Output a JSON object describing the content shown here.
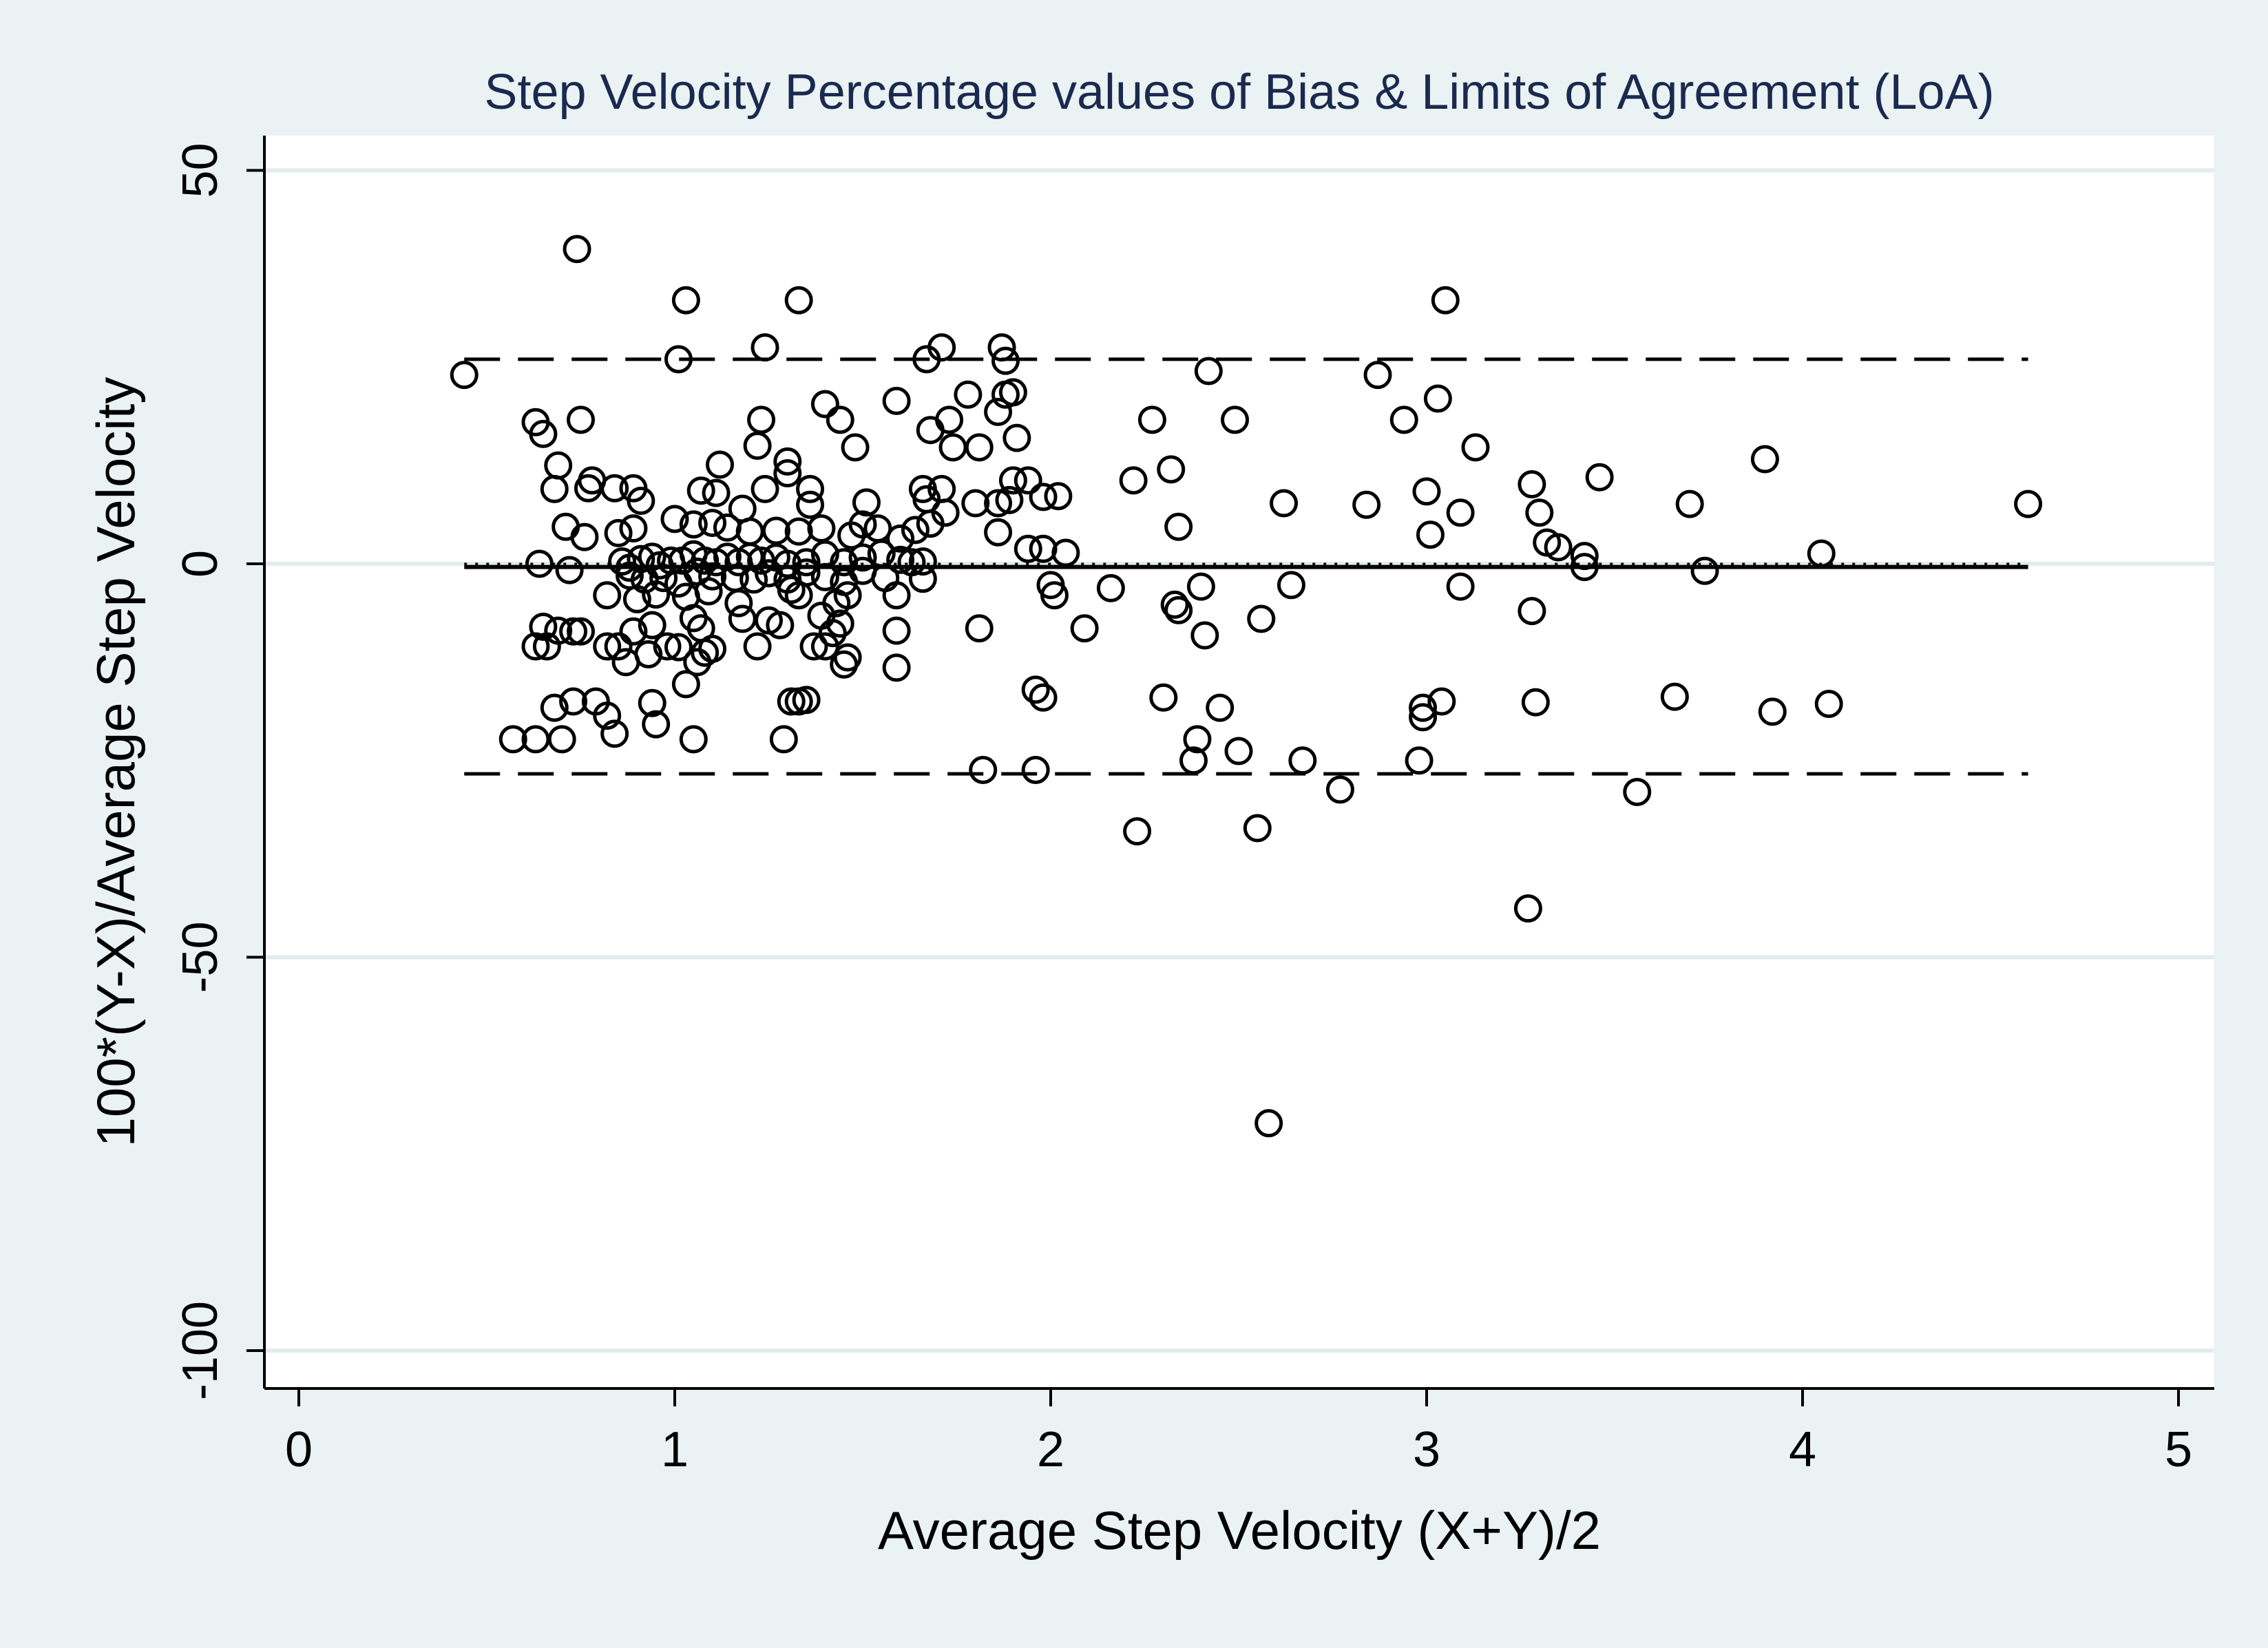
{
  "chart_data": {
    "type": "scatter",
    "title": "Step Velocity Percentage values of Bias & Limits of Agreement (LoA)",
    "xlabel": "Average Step Velocity (X+Y)/2",
    "ylabel": "100*(Y-X)/Average Step Velocity",
    "xlim": [
      0,
      5
    ],
    "ylim": [
      -100,
      50
    ],
    "xticks": [
      0,
      1,
      2,
      3,
      4,
      5
    ],
    "yticks": [
      50,
      0,
      -50,
      -100
    ],
    "xtick_labels": [
      "0",
      "1",
      "2",
      "3",
      "4",
      "5"
    ],
    "ytick_labels": [
      "50",
      "0",
      "-50",
      "-100"
    ],
    "grid": "horizontal",
    "reference_lines": [
      {
        "name": "bias",
        "value": -0.4,
        "style": "solid",
        "x_range": [
          0.44,
          4.6
        ]
      },
      {
        "name": "upper-loa",
        "value": 26.0,
        "style": "dashed",
        "x_range": [
          0.44,
          4.6
        ]
      },
      {
        "name": "lower-loa",
        "value": -26.7,
        "style": "dashed",
        "x_range": [
          0.44,
          4.6
        ]
      },
      {
        "name": "zero",
        "value": 0,
        "style": "dotted",
        "x_range": [
          0.44,
          4.6
        ]
      }
    ],
    "points": [
      [
        0.44,
        24.0
      ],
      [
        0.74,
        40.0
      ],
      [
        1.03,
        33.5
      ],
      [
        1.33,
        33.5
      ],
      [
        1.01,
        26.0
      ],
      [
        1.24,
        27.5
      ],
      [
        1.67,
        26.0
      ],
      [
        1.71,
        27.5
      ],
      [
        1.87,
        27.5
      ],
      [
        1.88,
        25.8
      ],
      [
        2.42,
        24.5
      ],
      [
        2.87,
        24.0
      ],
      [
        3.05,
        33.5
      ],
      [
        3.03,
        21.0
      ],
      [
        2.94,
        18.3
      ],
      [
        2.27,
        18.3
      ],
      [
        2.49,
        18.3
      ],
      [
        3.13,
        14.8
      ],
      [
        3.9,
        13.3
      ],
      [
        0.63,
        18.0
      ],
      [
        0.65,
        16.5
      ],
      [
        0.75,
        18.3
      ],
      [
        1.23,
        18.3
      ],
      [
        1.22,
        15.0
      ],
      [
        1.4,
        20.3
      ],
      [
        1.44,
        18.3
      ],
      [
        1.48,
        14.8
      ],
      [
        1.59,
        20.7
      ],
      [
        1.68,
        17.0
      ],
      [
        1.73,
        18.3
      ],
      [
        1.78,
        21.5
      ],
      [
        1.81,
        14.8
      ],
      [
        1.88,
        21.5
      ],
      [
        1.86,
        19.3
      ],
      [
        1.9,
        21.8
      ],
      [
        1.91,
        16.0
      ],
      [
        1.74,
        14.8
      ],
      [
        0.69,
        12.5
      ],
      [
        0.68,
        9.5
      ],
      [
        0.78,
        10.6
      ],
      [
        0.77,
        9.6
      ],
      [
        0.84,
        9.6
      ],
      [
        0.89,
        9.6
      ],
      [
        0.91,
        8.0
      ],
      [
        1.07,
        9.3
      ],
      [
        1.12,
        12.6
      ],
      [
        1.11,
        9.0
      ],
      [
        1.3,
        13.0
      ],
      [
        1.3,
        11.5
      ],
      [
        1.36,
        9.5
      ],
      [
        1.24,
        9.5
      ],
      [
        1.66,
        9.5
      ],
      [
        1.71,
        9.5
      ],
      [
        1.67,
        8.2
      ],
      [
        1.8,
        7.7
      ],
      [
        1.86,
        7.7
      ],
      [
        1.89,
        8.1
      ],
      [
        1.9,
        10.6
      ],
      [
        1.94,
        10.6
      ],
      [
        1.98,
        8.5
      ],
      [
        2.02,
        8.6
      ],
      [
        2.22,
        10.6
      ],
      [
        2.32,
        12.0
      ],
      [
        2.62,
        7.7
      ],
      [
        2.84,
        7.5
      ],
      [
        3.0,
        9.2
      ],
      [
        3.28,
        10.1
      ],
      [
        3.46,
        11.0
      ],
      [
        3.7,
        7.6
      ],
      [
        4.6,
        7.6
      ],
      [
        1.51,
        7.8
      ],
      [
        1.36,
        7.5
      ],
      [
        1.18,
        7.0
      ],
      [
        0.71,
        4.7
      ],
      [
        0.76,
        3.4
      ],
      [
        0.85,
        3.9
      ],
      [
        0.89,
        4.5
      ],
      [
        1.0,
        5.7
      ],
      [
        1.05,
        5.0
      ],
      [
        1.1,
        5.2
      ],
      [
        1.14,
        4.6
      ],
      [
        1.2,
        4.1
      ],
      [
        1.27,
        4.2
      ],
      [
        1.33,
        4.1
      ],
      [
        1.39,
        4.5
      ],
      [
        1.47,
        3.6
      ],
      [
        1.5,
        5.0
      ],
      [
        1.54,
        4.5
      ],
      [
        1.6,
        3.2
      ],
      [
        1.64,
        4.3
      ],
      [
        1.68,
        5.1
      ],
      [
        1.72,
        6.5
      ],
      [
        1.86,
        4.0
      ],
      [
        2.34,
        4.7
      ],
      [
        3.01,
        3.7
      ],
      [
        3.09,
        6.5
      ],
      [
        3.3,
        6.5
      ],
      [
        3.32,
        2.7
      ],
      [
        3.35,
        2.1
      ],
      [
        3.42,
        1.0
      ],
      [
        4.05,
        1.3
      ],
      [
        2.04,
        1.4
      ],
      [
        1.94,
        1.9
      ],
      [
        1.98,
        1.9
      ],
      [
        0.64,
        0.0
      ],
      [
        0.72,
        -0.8
      ],
      [
        0.86,
        0.3
      ],
      [
        0.88,
        -0.5
      ],
      [
        0.91,
        0.6
      ],
      [
        0.94,
        0.9
      ],
      [
        0.96,
        -0.2
      ],
      [
        0.99,
        0.4
      ],
      [
        1.02,
        0.4
      ],
      [
        1.05,
        1.2
      ],
      [
        1.08,
        0.4
      ],
      [
        1.11,
        0.2
      ],
      [
        1.14,
        0.9
      ],
      [
        1.17,
        0.2
      ],
      [
        1.2,
        0.9
      ],
      [
        1.23,
        0.4
      ],
      [
        1.27,
        0.8
      ],
      [
        1.3,
        0.0
      ],
      [
        1.35,
        0.2
      ],
      [
        1.4,
        1.2
      ],
      [
        1.45,
        0.2
      ],
      [
        1.5,
        0.8
      ],
      [
        1.55,
        1.3
      ],
      [
        1.6,
        0.5
      ],
      [
        1.63,
        0.2
      ],
      [
        1.66,
        0.3
      ],
      [
        3.42,
        -0.4
      ],
      [
        3.74,
        -0.9
      ],
      [
        0.88,
        -1.5
      ],
      [
        0.92,
        -2.0
      ],
      [
        0.97,
        -1.8
      ],
      [
        1.01,
        -2.5
      ],
      [
        1.06,
        -1.0
      ],
      [
        1.1,
        -1.6
      ],
      [
        1.16,
        -1.8
      ],
      [
        1.21,
        -2.0
      ],
      [
        1.25,
        -1.2
      ],
      [
        1.3,
        -2.0
      ],
      [
        1.35,
        -1.1
      ],
      [
        1.4,
        -1.7
      ],
      [
        1.45,
        -2.3
      ],
      [
        1.5,
        -0.9
      ],
      [
        1.56,
        -1.8
      ],
      [
        1.66,
        -1.9
      ],
      [
        2.0,
        -2.7
      ],
      [
        2.16,
        -3.1
      ],
      [
        2.4,
        -2.9
      ],
      [
        2.64,
        -2.7
      ],
      [
        3.09,
        -2.9
      ],
      [
        0.82,
        -4.0
      ],
      [
        0.9,
        -4.5
      ],
      [
        0.95,
        -3.9
      ],
      [
        1.03,
        -4.2
      ],
      [
        1.09,
        -3.5
      ],
      [
        1.17,
        -5.0
      ],
      [
        1.31,
        -3.3
      ],
      [
        1.33,
        -4.0
      ],
      [
        1.43,
        -5.0
      ],
      [
        1.46,
        -4.0
      ],
      [
        1.59,
        -4.0
      ],
      [
        2.01,
        -4.0
      ],
      [
        2.33,
        -5.2
      ],
      [
        2.34,
        -5.9
      ],
      [
        3.28,
        -6.0
      ],
      [
        1.05,
        -6.9
      ],
      [
        1.07,
        -8.2
      ],
      [
        1.18,
        -7.0
      ],
      [
        1.25,
        -7.2
      ],
      [
        1.28,
        -7.8
      ],
      [
        1.39,
        -6.6
      ],
      [
        1.44,
        -7.6
      ],
      [
        1.42,
        -8.8
      ],
      [
        1.59,
        -8.5
      ],
      [
        0.65,
        -8.0
      ],
      [
        0.69,
        -8.5
      ],
      [
        0.73,
        -8.6
      ],
      [
        0.75,
        -8.6
      ],
      [
        0.89,
        -8.6
      ],
      [
        0.94,
        -7.8
      ],
      [
        1.81,
        -8.2
      ],
      [
        2.09,
        -8.2
      ],
      [
        2.41,
        -9.1
      ],
      [
        2.56,
        -7.0
      ],
      [
        0.63,
        -10.5
      ],
      [
        0.66,
        -10.5
      ],
      [
        0.82,
        -10.5
      ],
      [
        0.85,
        -10.5
      ],
      [
        0.87,
        -12.5
      ],
      [
        0.93,
        -11.5
      ],
      [
        0.98,
        -10.5
      ],
      [
        1.01,
        -10.6
      ],
      [
        1.03,
        -15.3
      ],
      [
        1.06,
        -12.5
      ],
      [
        1.08,
        -11.3
      ],
      [
        1.1,
        -10.8
      ],
      [
        1.22,
        -10.5
      ],
      [
        1.37,
        -10.5
      ],
      [
        1.4,
        -10.5
      ],
      [
        1.46,
        -11.9
      ],
      [
        1.45,
        -12.8
      ],
      [
        1.59,
        -13.2
      ],
      [
        0.68,
        -18.3
      ],
      [
        0.73,
        -17.5
      ],
      [
        0.79,
        -17.5
      ],
      [
        0.82,
        -19.3
      ],
      [
        0.84,
        -21.6
      ],
      [
        0.94,
        -17.7
      ],
      [
        0.95,
        -20.4
      ],
      [
        1.31,
        -17.5
      ],
      [
        1.33,
        -17.5
      ],
      [
        1.35,
        -17.3
      ],
      [
        1.96,
        -16.0
      ],
      [
        1.98,
        -17.0
      ],
      [
        2.3,
        -17.0
      ],
      [
        2.45,
        -18.3
      ],
      [
        2.99,
        -18.3
      ],
      [
        2.99,
        -19.5
      ],
      [
        3.04,
        -17.5
      ],
      [
        3.29,
        -17.6
      ],
      [
        3.66,
        -16.9
      ],
      [
        3.92,
        -18.8
      ],
      [
        4.07,
        -17.8
      ],
      [
        0.57,
        -22.3
      ],
      [
        0.63,
        -22.3
      ],
      [
        0.7,
        -22.3
      ],
      [
        1.05,
        -22.3
      ],
      [
        1.29,
        -22.3
      ],
      [
        2.39,
        -22.3
      ],
      [
        2.38,
        -25.0
      ],
      [
        2.5,
        -23.8
      ],
      [
        1.82,
        -26.2
      ],
      [
        1.96,
        -26.2
      ],
      [
        2.67,
        -25.0
      ],
      [
        2.98,
        -25.0
      ],
      [
        2.77,
        -28.7
      ],
      [
        3.56,
        -29.0
      ],
      [
        2.23,
        -34.0
      ],
      [
        2.55,
        -33.6
      ],
      [
        3.27,
        -43.8
      ],
      [
        2.58,
        -71.1
      ]
    ]
  }
}
